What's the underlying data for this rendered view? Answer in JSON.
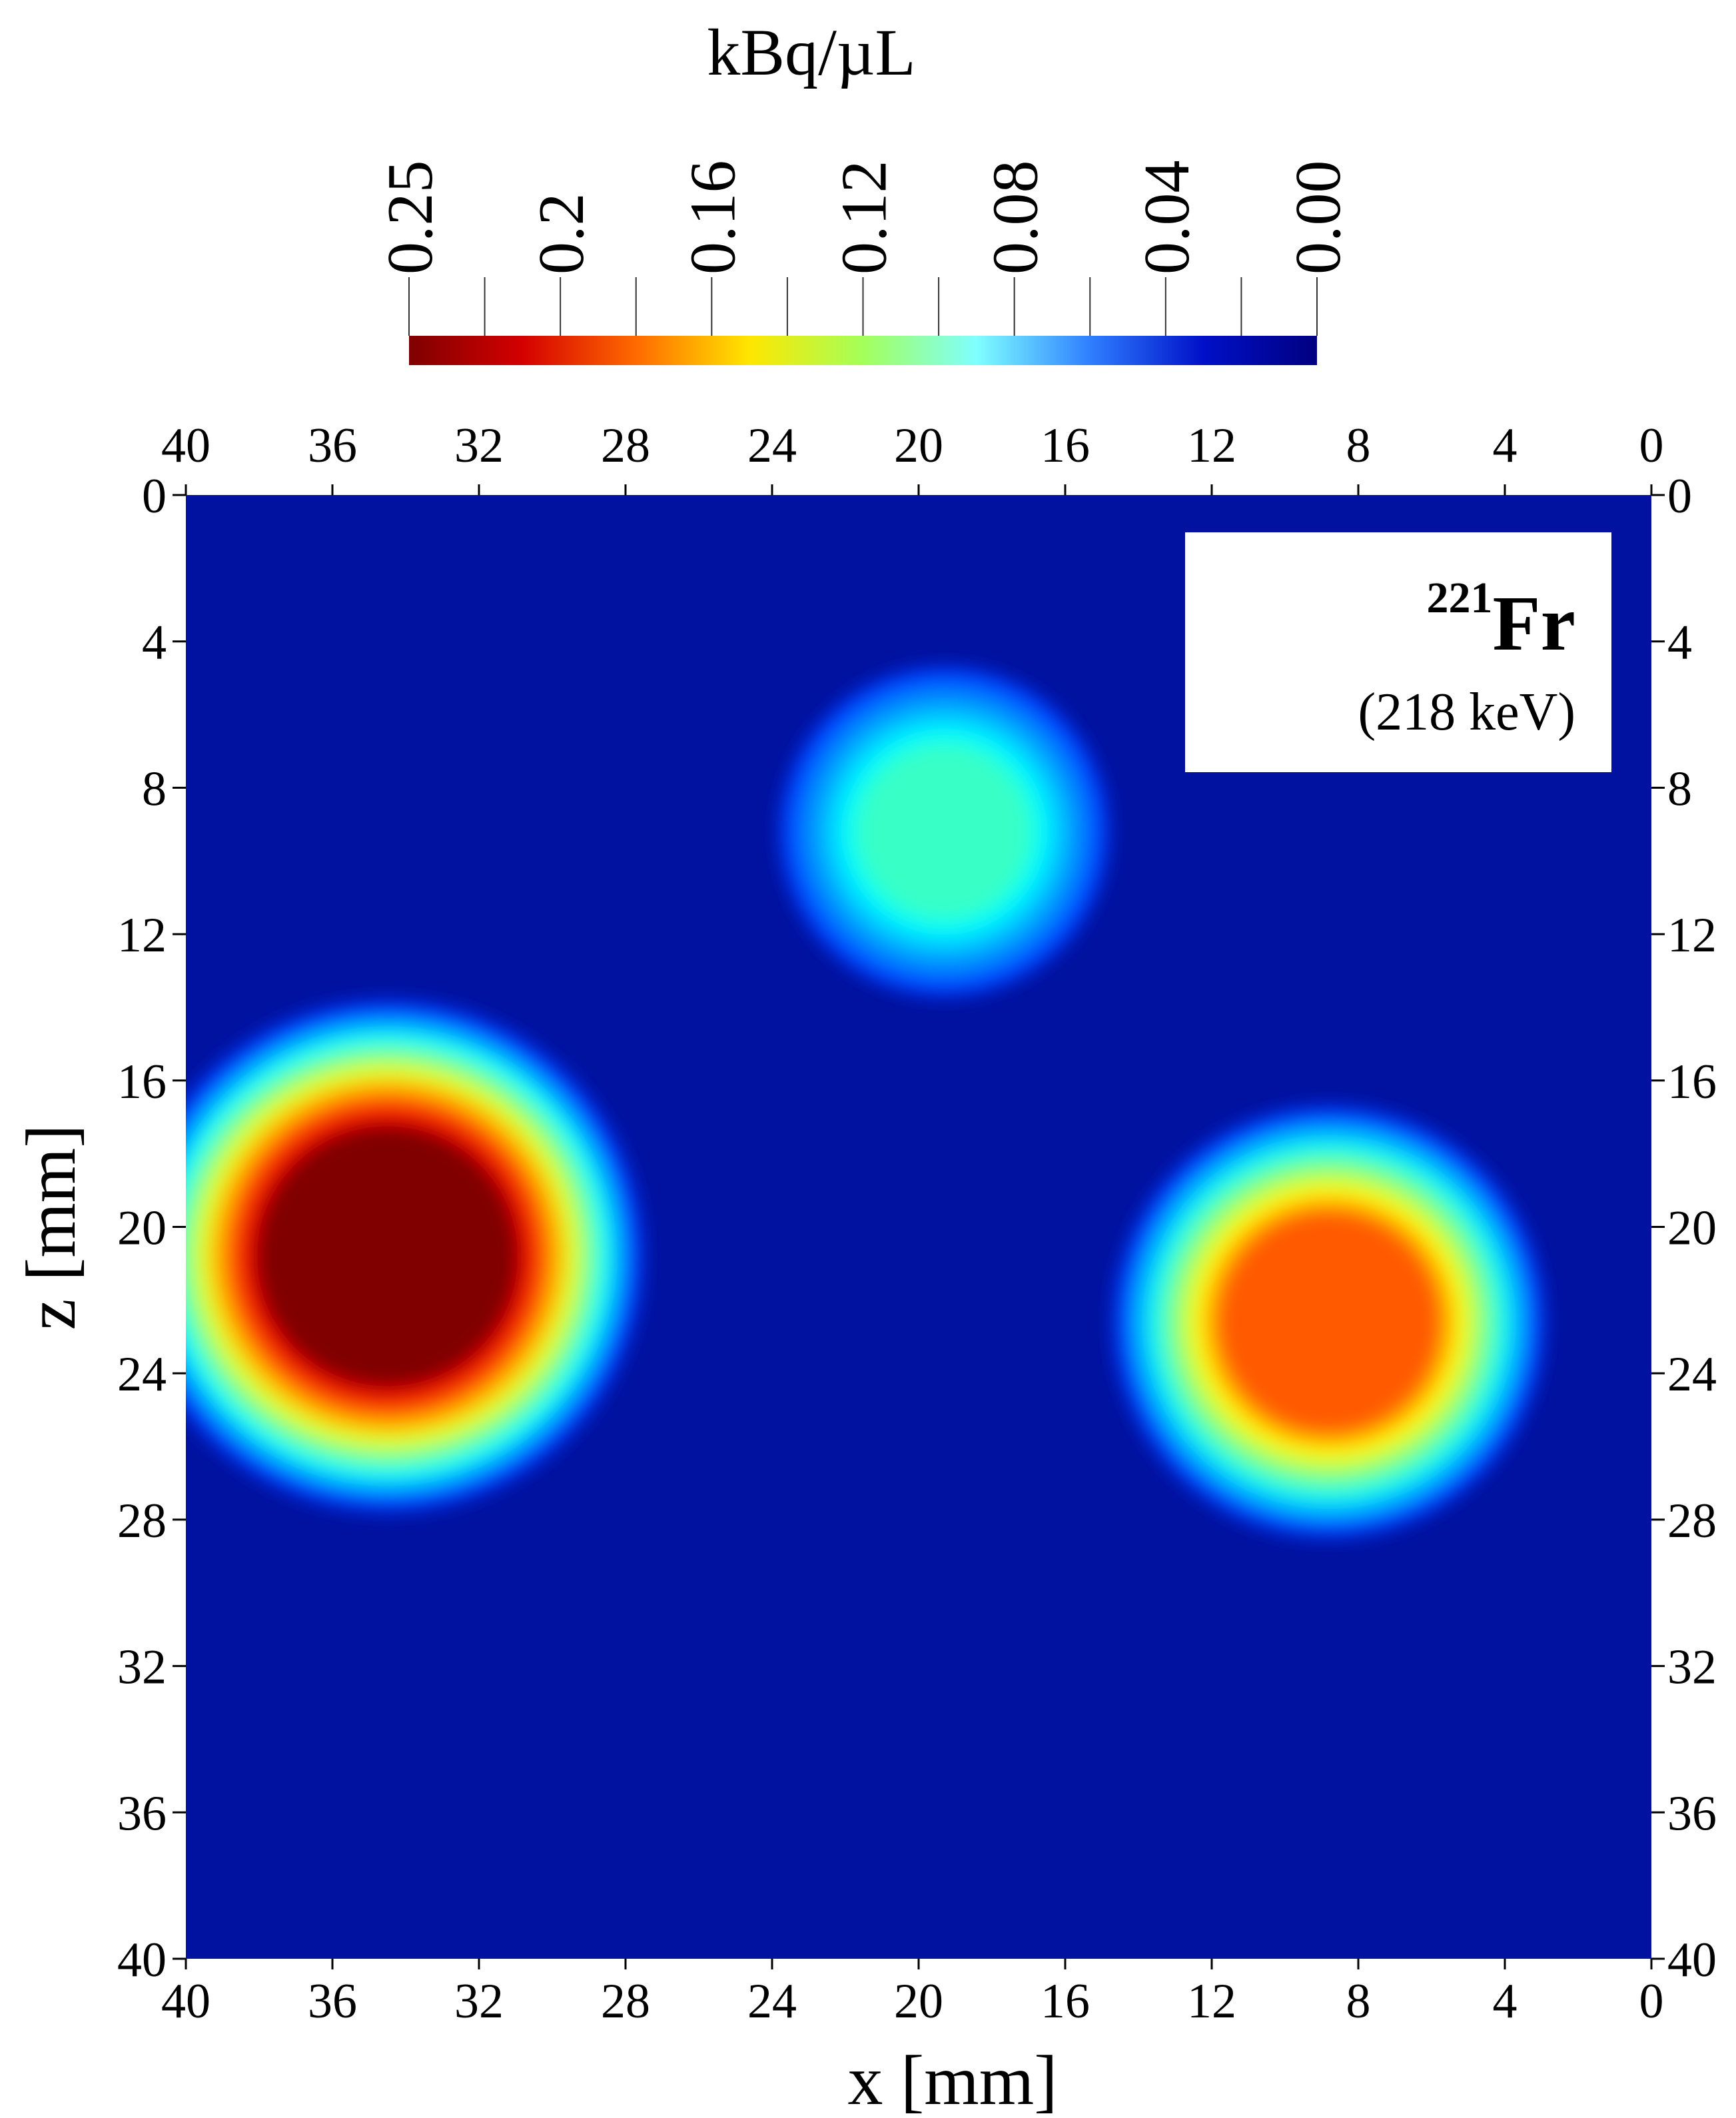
{
  "colorbar": {
    "title": "kBq/µL",
    "labels": [
      "0.25",
      "0.2",
      "0.16",
      "0.12",
      "0.08",
      "0.04",
      "0.00"
    ],
    "colormap": "jet",
    "colors": [
      "#7f0000",
      "#d40000",
      "#ff6a00",
      "#ffe600",
      "#a4ff5a",
      "#7fffff",
      "#2f7fff",
      "#0010c8",
      "#00007f"
    ],
    "range": [
      0.0,
      0.25
    ]
  },
  "annotation": {
    "isotope_mass": "221",
    "isotope_symbol": "Fr",
    "energy": "(218 keV)"
  },
  "chart_data": {
    "type": "heatmap",
    "xlabel": "x [mm]",
    "ylabel": "z [mm]",
    "xlim": [
      40,
      0
    ],
    "ylim": [
      0,
      40
    ],
    "x_ticks": [
      40,
      36,
      32,
      28,
      24,
      20,
      16,
      12,
      8,
      4,
      0
    ],
    "y_ticks": [
      0,
      4,
      8,
      12,
      16,
      20,
      24,
      28,
      32,
      36,
      40
    ],
    "background_value": 0.0,
    "sources": [
      {
        "x": 34.5,
        "z": 20.8,
        "radius": 4.5,
        "value": 0.25
      },
      {
        "x": 19.3,
        "z": 9.2,
        "radius": 2.9,
        "value": 0.09
      },
      {
        "x": 8.8,
        "z": 22.6,
        "radius": 3.8,
        "value": 0.19
      }
    ],
    "colorbar_title": "kBq/µL",
    "colorbar_range": [
      0.0,
      0.25
    ],
    "grid": false,
    "legend": "top-right"
  }
}
